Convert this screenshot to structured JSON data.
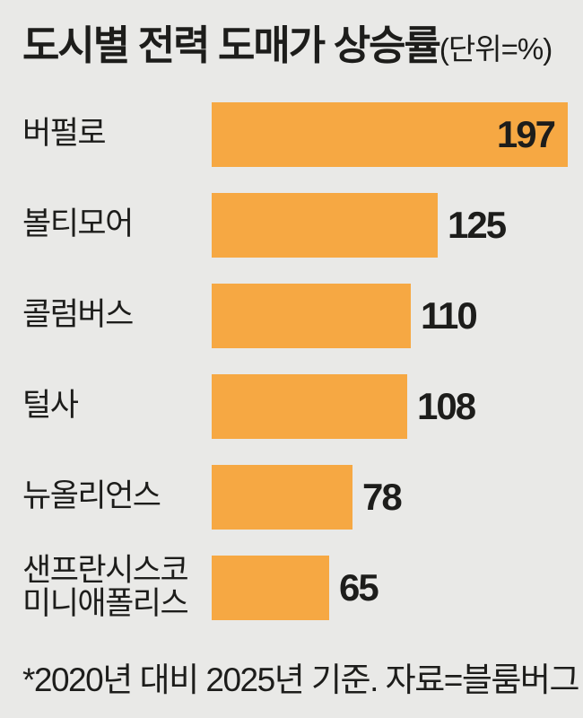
{
  "title": {
    "text": "도시별 전력 도매가 상승률",
    "unit_label": "(단위=%)"
  },
  "footnote": "*2020년 대비 2025년 기준. 자료=블룸버그",
  "colors": {
    "background": "#E9E9E7",
    "bar": "#F6A843",
    "text": "#1D1D1B"
  },
  "chart_data": {
    "type": "bar",
    "orientation": "horizontal",
    "title": "도시별 전력 도매가 상승률",
    "unit_label": "(단위=%)",
    "unit": "%",
    "categories": [
      "버펄로",
      "볼티모어",
      "콜럼버스",
      "털사",
      "뉴올리언스",
      "샌프란시스코\n미니애폴리스"
    ],
    "values": [
      197,
      125,
      110,
      108,
      78,
      65
    ],
    "value_label_inside": [
      true,
      false,
      false,
      false,
      false,
      false
    ],
    "xlim": [
      0,
      197
    ],
    "grid": false,
    "legend": false,
    "annotation": "*2020년 대비 2025년 기준. 자료=블룸버그",
    "source": "자료=블룸버그",
    "note": "*2020년 대비 2025년 기준."
  }
}
